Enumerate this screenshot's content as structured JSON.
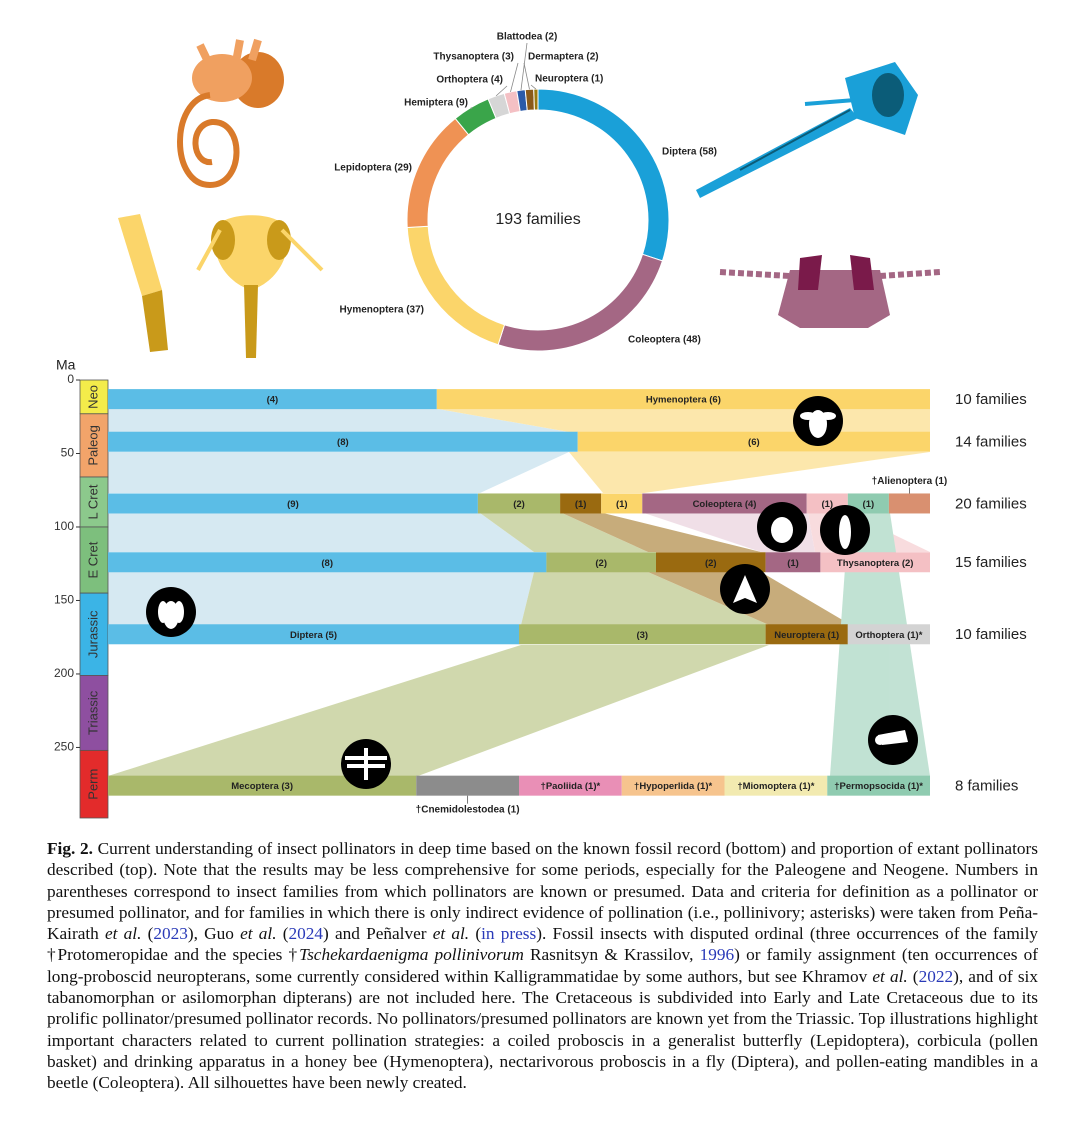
{
  "chart_data": [
    {
      "type": "donut",
      "center_text": "193 families",
      "categories": [
        "Diptera (58)",
        "Coleoptera (48)",
        "Hymenoptera (37)",
        "Lepidoptera (29)",
        "Hemiptera (9)",
        "Orthoptera (4)",
        "Thysanoptera (3)",
        "Blattodea (2)",
        "Dermaptera (2)",
        "Neuroptera (1)"
      ],
      "values": [
        58,
        48,
        37,
        29,
        9,
        4,
        3,
        2,
        2,
        1
      ],
      "colors": [
        "#1aa0d8",
        "#a46784",
        "#fbd56a",
        "#ef9254",
        "#3aa54a",
        "#d6d6d6",
        "#f4c0c4",
        "#2b5aa8",
        "#8a5a1a",
        "#9a7a10"
      ]
    },
    {
      "type": "timeline",
      "ylabel": "Ma",
      "ylim": [
        0,
        298
      ],
      "yticks": [
        0,
        50,
        100,
        150,
        200,
        250
      ],
      "periods": [
        {
          "name": "Neo",
          "start": 0,
          "end": 23,
          "color": "#f4ec4a"
        },
        {
          "name": "Paleog",
          "start": 23,
          "end": 66,
          "color": "#f2a46a"
        },
        {
          "name": "L Cret",
          "start": 66,
          "end": 100,
          "color": "#8cc98c"
        },
        {
          "name": "E Cret",
          "start": 100,
          "end": 145,
          "color": "#7dbf7d"
        },
        {
          "name": "Jurassic",
          "start": 145,
          "end": 201,
          "color": "#3bb4e6"
        },
        {
          "name": "Triassic",
          "start": 201,
          "end": 252,
          "color": "#8e4fa0"
        },
        {
          "name": "Perm",
          "start": 252,
          "end": 298,
          "color": "#e32b2b"
        }
      ],
      "rows": [
        {
          "ma": 13,
          "total_label": "10 families",
          "segments": [
            {
              "label": "(4)",
              "value": 4,
              "color": "#5bbde6"
            },
            {
              "label": "Hymenoptera (6)",
              "value": 6,
              "color": "#fbd56a"
            }
          ]
        },
        {
          "ma": 42,
          "total_label": "14 families",
          "segments": [
            {
              "label": "(8)",
              "value": 8,
              "color": "#5bbde6"
            },
            {
              "label": "(6)",
              "value": 6,
              "color": "#fbd56a"
            }
          ]
        },
        {
          "ma": 84,
          "total_label": "20 families",
          "segments": [
            {
              "label": "(9)",
              "value": 9,
              "color": "#5bbde6"
            },
            {
              "label": "(2)",
              "value": 2,
              "color": "#a9b86a"
            },
            {
              "label": "(1)",
              "value": 1,
              "color": "#9a6a10"
            },
            {
              "label": "(1)",
              "value": 1,
              "color": "#fbd56a"
            },
            {
              "label": "Coleoptera (4)",
              "value": 4,
              "color": "#a46784"
            },
            {
              "label": "(1)",
              "value": 1,
              "color": "#f4c0c4"
            },
            {
              "label": "(1)",
              "value": 1,
              "color": "#8fcbb0"
            },
            {
              "callout": "†Alienoptera (1)",
              "value": 1,
              "color": "#d99070"
            }
          ]
        },
        {
          "ma": 124,
          "total_label": "15 families",
          "segments": [
            {
              "label": "(8)",
              "value": 8,
              "color": "#5bbde6"
            },
            {
              "label": "(2)",
              "value": 2,
              "color": "#a9b86a"
            },
            {
              "label": "(2)",
              "value": 2,
              "color": "#9a6a10"
            },
            {
              "label": "(1)",
              "value": 1,
              "color": "#a46784"
            },
            {
              "label": "Thysanoptera (2)",
              "value": 2,
              "color": "#f4c0c4"
            }
          ]
        },
        {
          "ma": 173,
          "total_label": "10 families",
          "segments": [
            {
              "label": "Diptera (5)",
              "value": 5,
              "color": "#5bbde6"
            },
            {
              "label": "(3)",
              "value": 3,
              "color": "#a9b86a"
            },
            {
              "label": "Neuroptera (1)",
              "value": 1,
              "color": "#9a6a10"
            },
            {
              "label": "Orthoptera (1)*",
              "value": 1,
              "color": "#d3d3d3"
            }
          ]
        },
        {
          "ma": 276,
          "total_label": "8 families",
          "segments": [
            {
              "label": "Mecoptera (3)",
              "value": 3,
              "color": "#a9b86a"
            },
            {
              "callout": "†Cnemidolestodea (1)",
              "value": 1,
              "color": "#8c8c8c"
            },
            {
              "label": "†Paoliida (1)*",
              "value": 1,
              "color": "#e98fb6"
            },
            {
              "label": "†Hypoperlida (1)*",
              "value": 1,
              "color": "#f6c48e"
            },
            {
              "label": "†Miomoptera (1)*",
              "value": 1,
              "color": "#f2eab0"
            },
            {
              "label": "†Permopsocida (1)*",
              "value": 1,
              "color": "#8fcbb0"
            }
          ]
        }
      ]
    }
  ],
  "caption": [
    {
      "text": "Fig. 2.",
      "style": "bold"
    },
    {
      "text": " Current understanding of insect pollinators in deep time based on the known fossil record (bottom) and proportion of extant pollinators described (top). Note that the results may be less comprehensive for some periods, especially for the Paleogene and Neogene. Numbers in parentheses correspond to insect families from which pollinators are known or presumed. Data and criteria for definition as a pollinator or presumed pollinator, and for families in which there is only indirect evidence of pollination (i.e., pollinivory; asterisks) were taken from Peña-Kairath ",
      "style": "plain"
    },
    {
      "text": "et al.",
      "style": "italic"
    },
    {
      "text": " (",
      "style": "plain"
    },
    {
      "text": "2023",
      "style": "link"
    },
    {
      "text": "), Guo ",
      "style": "plain"
    },
    {
      "text": "et al.",
      "style": "italic"
    },
    {
      "text": " (",
      "style": "plain"
    },
    {
      "text": "2024",
      "style": "link"
    },
    {
      "text": ") and Peñalver ",
      "style": "plain"
    },
    {
      "text": "et al.",
      "style": "italic"
    },
    {
      "text": " (",
      "style": "plain"
    },
    {
      "text": "in press",
      "style": "link"
    },
    {
      "text": "). Fossil insects with disputed ordinal (three occurrences of the family †Protomeropidae and the species †",
      "style": "plain"
    },
    {
      "text": "Tschekardaenigma pollinivorum",
      "style": "italic"
    },
    {
      "text": " Rasnitsyn & Krassilov, ",
      "style": "plain"
    },
    {
      "text": "1996",
      "style": "link"
    },
    {
      "text": ") or family assignment (ten occurrences of long-proboscid neuropterans, some currently considered within Kalligrammatidae by some authors, but see Khramov ",
      "style": "plain"
    },
    {
      "text": "et al.",
      "style": "italic"
    },
    {
      "text": " (",
      "style": "plain"
    },
    {
      "text": "2022",
      "style": "link"
    },
    {
      "text": "), and of six tabanomorphan or asilomorphan dipterans) are not included here. The Cretaceous is subdivided into Early and Late Cretaceous due to its prolific pollinator/presumed pollinator records. No pollinators/presumed pollinators are known yet from the Triassic. Top illustrations highlight important characters related to current pollination strategies: a coiled proboscis in a generalist butterfly (Lepidoptera), corbicula (pollen basket) and drinking apparatus in a honey bee (Hymenoptera), nectarivorous proboscis in a fly (Diptera), and pollen-eating mandibles in a beetle (Coleoptera). All silhouettes have been newly created.",
      "style": "plain"
    }
  ]
}
